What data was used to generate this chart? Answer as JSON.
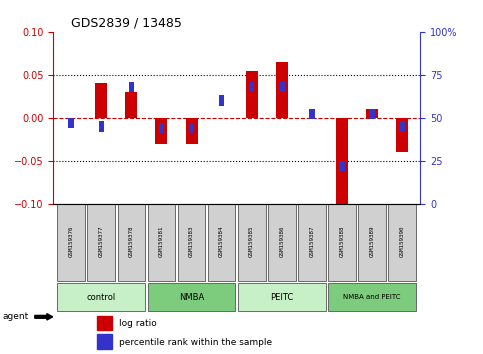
{
  "title": "GDS2839 / 13485",
  "samples": [
    "GSM159376",
    "GSM159377",
    "GSM159378",
    "GSM159381",
    "GSM159383",
    "GSM159384",
    "GSM159385",
    "GSM159386",
    "GSM159387",
    "GSM159388",
    "GSM159389",
    "GSM159390"
  ],
  "log_ratio": [
    0.0,
    0.04,
    0.03,
    -0.03,
    -0.03,
    0.0,
    0.055,
    0.065,
    0.0,
    -0.105,
    0.01,
    -0.04
  ],
  "percentile_rank": [
    47,
    45,
    68,
    44,
    44,
    60,
    68,
    68,
    52,
    22,
    52,
    45
  ],
  "groups": [
    {
      "label": "control",
      "start": 0,
      "end": 3,
      "color": "#c8f0c8"
    },
    {
      "label": "NMBA",
      "start": 3,
      "end": 6,
      "color": "#7dcc7d"
    },
    {
      "label": "PEITC",
      "start": 6,
      "end": 9,
      "color": "#c8f0c8"
    },
    {
      "label": "NMBA and PEITC",
      "start": 9,
      "end": 12,
      "color": "#7dcc7d"
    }
  ],
  "ylim_left": [
    -0.1,
    0.1
  ],
  "ylim_right": [
    0,
    100
  ],
  "left_yticks": [
    -0.1,
    -0.05,
    0,
    0.05,
    0.1
  ],
  "right_yticks": [
    0,
    25,
    50,
    75,
    100
  ],
  "bar_width": 0.4,
  "blue_bar_width": 0.18,
  "red_color": "#cc0000",
  "blue_color": "#3333cc",
  "zero_line_color": "#cc0000",
  "sample_box_color": "#d0d0d0",
  "legend_red_label": "log ratio",
  "legend_blue_label": "percentile rank within the sample",
  "agent_label": "agent"
}
